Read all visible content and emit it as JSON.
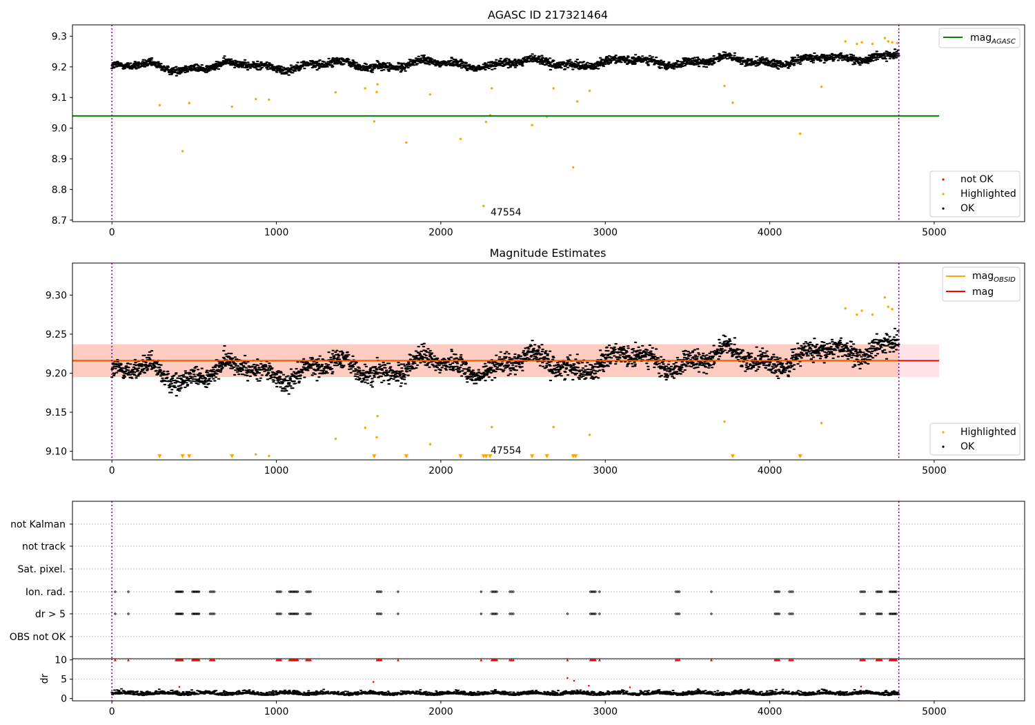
{
  "colors": {
    "ok": "#000000",
    "highlighted": "#ffa500",
    "not_ok": "#ff0000",
    "mag_agasc": "#008000",
    "mag": "#ff0000",
    "mag_obsid": "#ffa500",
    "epoch_line": "#800080",
    "band_mag": "#ffc0cb",
    "band_obsid": "#ffa07a",
    "grid": "#b0b0b0"
  },
  "chart_data": [
    {
      "type": "scatter",
      "title": "AGASC ID 217321464",
      "xlabel": "",
      "ylabel": "",
      "xlim": [
        -240,
        5550
      ],
      "ylim": [
        8.695,
        9.337
      ],
      "xticks": [
        0,
        1000,
        2000,
        3000,
        4000,
        5000
      ],
      "xtick_labels": [
        "0",
        "1000",
        "2000",
        "3000",
        "4000",
        "5000"
      ],
      "yticks": [
        8.7,
        8.8,
        8.9,
        9.0,
        9.1,
        9.2,
        9.3
      ],
      "ytick_labels": [
        "8.7",
        "8.8",
        "8.9",
        "9.0",
        "9.1",
        "9.2",
        "9.3"
      ],
      "lines": [
        {
          "name": "mag_AGASC",
          "y": 9.04,
          "x_range": [
            -240,
            5030
          ]
        }
      ],
      "obs_boundaries": [
        0,
        4785
      ],
      "annotations": [
        {
          "text": "47554",
          "x": 2300,
          "y": 8.722
        }
      ],
      "highlighted_points": [
        [
          290,
          9.075
        ],
        [
          430,
          8.925
        ],
        [
          470,
          9.082
        ],
        [
          730,
          9.07
        ],
        [
          875,
          9.095
        ],
        [
          955,
          9.093
        ],
        [
          1360,
          9.117
        ],
        [
          1540,
          9.13
        ],
        [
          1595,
          9.022
        ],
        [
          1610,
          9.118
        ],
        [
          1615,
          9.143
        ],
        [
          1790,
          8.953
        ],
        [
          1935,
          9.11
        ],
        [
          2120,
          8.965
        ],
        [
          2260,
          8.746
        ],
        [
          2275,
          9.02
        ],
        [
          2300,
          9.042
        ],
        [
          2310,
          9.13
        ],
        [
          2555,
          9.01
        ],
        [
          2645,
          9.037
        ],
        [
          2685,
          9.13
        ],
        [
          2805,
          8.872
        ],
        [
          2830,
          9.087
        ],
        [
          2905,
          9.122
        ],
        [
          3725,
          9.138
        ],
        [
          3775,
          9.083
        ],
        [
          4185,
          8.982
        ],
        [
          4315,
          9.135
        ],
        [
          4460,
          9.283
        ],
        [
          4530,
          9.275
        ],
        [
          4560,
          9.28
        ],
        [
          4625,
          9.275
        ],
        [
          4700,
          9.294
        ],
        [
          4720,
          9.283
        ],
        [
          4745,
          9.28
        ],
        [
          4775,
          9.277
        ]
      ],
      "ok_points": "synthetic dense scatter around ~9.20 rising to ~9.26",
      "legends": [
        {
          "position": "top-right",
          "entries": [
            {
              "label": "mag",
              "sub": "AGASC",
              "marker": "line",
              "color": "#008000"
            }
          ]
        },
        {
          "position": "lower-right",
          "entries": [
            {
              "label": "not OK",
              "marker": "dot",
              "color": "#ff0000"
            },
            {
              "label": "Highlighted",
              "marker": "dot",
              "color": "#ffa500"
            },
            {
              "label": "OK",
              "marker": "dot",
              "color": "#000000"
            }
          ]
        }
      ]
    },
    {
      "type": "scatter",
      "title": "Magnitude Estimates",
      "xlabel": "",
      "ylabel": "",
      "xlim": [
        -240,
        5550
      ],
      "ylim": [
        9.089,
        9.341
      ],
      "xticks": [
        0,
        1000,
        2000,
        3000,
        4000,
        5000
      ],
      "xtick_labels": [
        "0",
        "1000",
        "2000",
        "3000",
        "4000",
        "5000"
      ],
      "yticks": [
        9.1,
        9.15,
        9.2,
        9.25,
        9.3
      ],
      "ytick_labels": [
        "9.10",
        "9.15",
        "9.20",
        "9.25",
        "9.30"
      ],
      "mag": 9.216,
      "mag_band": [
        9.195,
        9.237
      ],
      "mag_obsid_band": [
        9.195,
        9.237
      ],
      "band_x_range": [
        -240,
        5030
      ],
      "obs_boundaries": [
        0,
        4785
      ],
      "annotations": [
        {
          "text": "47554",
          "x": 2300,
          "y": 9.097
        }
      ],
      "highlighted_points": [
        [
          875,
          9.096
        ],
        [
          955,
          9.094
        ],
        [
          1360,
          9.116
        ],
        [
          1540,
          9.13
        ],
        [
          1610,
          9.118
        ],
        [
          1615,
          9.145
        ],
        [
          1935,
          9.109
        ],
        [
          2310,
          9.131
        ],
        [
          2685,
          9.131
        ],
        [
          2905,
          9.121
        ],
        [
          3725,
          9.138
        ],
        [
          4315,
          9.136
        ],
        [
          4460,
          9.283
        ],
        [
          4530,
          9.275
        ],
        [
          4560,
          9.28
        ],
        [
          4625,
          9.275
        ],
        [
          4700,
          9.297
        ],
        [
          4720,
          9.285
        ],
        [
          4745,
          9.282
        ]
      ],
      "below_range_markers_x": [
        290,
        430,
        470,
        730,
        1595,
        1790,
        2120,
        2260,
        2275,
        2300,
        2555,
        2645,
        2805,
        2820,
        3775,
        4185
      ],
      "legends": [
        {
          "position": "top-right",
          "entries": [
            {
              "label": "mag",
              "sub": "OBSID",
              "marker": "line",
              "color": "#ffa500"
            },
            {
              "label": "mag",
              "marker": "line",
              "color": "#ff0000"
            }
          ]
        },
        {
          "position": "lower-right",
          "entries": [
            {
              "label": "Highlighted",
              "marker": "dot",
              "color": "#ffa500"
            },
            {
              "label": "OK",
              "marker": "dot",
              "color": "#000000"
            }
          ]
        }
      ]
    },
    {
      "type": "scatter",
      "title": "",
      "ylabel": "",
      "xlim": [
        -240,
        5550
      ],
      "categories": [
        "not Kalman",
        "not track",
        "Sat. pixel.",
        "Ion. rad.",
        "dr > 5",
        "OBS not OK"
      ],
      "flag_clusters": {
        "Ion. rad.": [
          [
            20,
            1
          ],
          [
            100,
            1
          ],
          [
            410,
            40
          ],
          [
            510,
            40
          ],
          [
            610,
            25
          ],
          [
            1015,
            25
          ],
          [
            1105,
            50
          ],
          [
            1195,
            25
          ],
          [
            1625,
            25
          ],
          [
            1740,
            8
          ],
          [
            2245,
            8
          ],
          [
            2325,
            30
          ],
          [
            2430,
            20
          ],
          [
            2925,
            30
          ],
          [
            2965,
            8
          ],
          [
            3440,
            20
          ],
          [
            3645,
            8
          ],
          [
            4045,
            25
          ],
          [
            4130,
            20
          ],
          [
            4565,
            25
          ],
          [
            4665,
            30
          ],
          [
            4750,
            40
          ]
        ],
        "dr > 5": [
          [
            20,
            1
          ],
          [
            100,
            1
          ],
          [
            410,
            40
          ],
          [
            510,
            40
          ],
          [
            610,
            25
          ],
          [
            1015,
            25
          ],
          [
            1105,
            50
          ],
          [
            1195,
            25
          ],
          [
            1625,
            25
          ],
          [
            1740,
            8
          ],
          [
            2245,
            8
          ],
          [
            2325,
            30
          ],
          [
            2430,
            20
          ],
          [
            2770,
            8
          ],
          [
            2925,
            30
          ],
          [
            2965,
            8
          ],
          [
            3440,
            20
          ],
          [
            3645,
            8
          ],
          [
            4045,
            25
          ],
          [
            4130,
            20
          ],
          [
            4565,
            25
          ],
          [
            4665,
            30
          ],
          [
            4750,
            40
          ]
        ]
      },
      "obs_boundaries": [
        0,
        4785
      ]
    },
    {
      "type": "scatter",
      "title": "",
      "ylabel": "dr",
      "xlim": [
        -240,
        5550
      ],
      "ylim": [
        -0.6,
        10.3
      ],
      "yticks": [
        0,
        5,
        10
      ],
      "ytick_labels": [
        "0",
        "5",
        "10"
      ],
      "clipped_at": 10,
      "outliers": [
        [
          410,
          3.0
        ],
        [
          1590,
          4.3
        ],
        [
          2770,
          5.3
        ],
        [
          2810,
          4.6
        ],
        [
          2900,
          3.3
        ],
        [
          3150,
          2.9
        ],
        [
          4555,
          3.1
        ]
      ],
      "obs_boundaries": [
        0,
        4785
      ]
    }
  ]
}
